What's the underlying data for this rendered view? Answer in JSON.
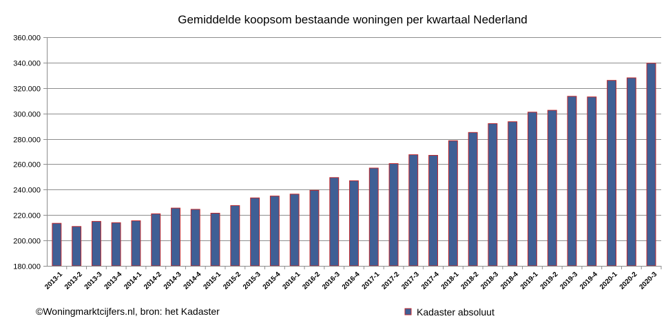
{
  "chart_data": {
    "type": "bar",
    "title": "Gemiddelde koopsom bestaande woningen per kwartaal Nederland",
    "xlabel": "",
    "ylabel": "",
    "ylim": [
      180000,
      360000
    ],
    "y_ticks": [
      180000,
      200000,
      220000,
      240000,
      260000,
      280000,
      300000,
      320000,
      340000,
      360000
    ],
    "y_tick_labels": [
      "180.000",
      "200.000",
      "220.000",
      "240.000",
      "260.000",
      "280.000",
      "300.000",
      "320.000",
      "340.000",
      "360.000"
    ],
    "grid": true,
    "legend_position": "bottom-center",
    "categories": [
      "2013-1",
      "2013-2",
      "2013-3",
      "2013-4",
      "2014-1",
      "2014-2",
      "2014-3",
      "2014-4",
      "2015-1",
      "2015-2",
      "2015-3",
      "2015-4",
      "2016-1",
      "2016-2",
      "2016-3",
      "2016-4",
      "2017-1",
      "2017-2",
      "2017-3",
      "2017-4",
      "2018-1",
      "2018-2",
      "2018-3",
      "2018-4",
      "2019-1",
      "2019-2",
      "2019-3",
      "2019-4",
      "2020-1",
      "2020-2",
      "2020-3"
    ],
    "series": [
      {
        "name": "Kadaster absoluut",
        "color": "#3f5f95",
        "edge_color": "#c0282d",
        "values": [
          213500,
          211000,
          215000,
          214000,
          215500,
          221000,
          225500,
          224500,
          221500,
          227500,
          233500,
          235000,
          236500,
          239500,
          249500,
          247000,
          257000,
          260500,
          267500,
          267000,
          278500,
          285000,
          292000,
          293500,
          301000,
          302500,
          313500,
          313000,
          326000,
          328000,
          339500
        ]
      }
    ],
    "source_note": "©Woningmarktcijfers.nl, bron: het Kadaster"
  }
}
